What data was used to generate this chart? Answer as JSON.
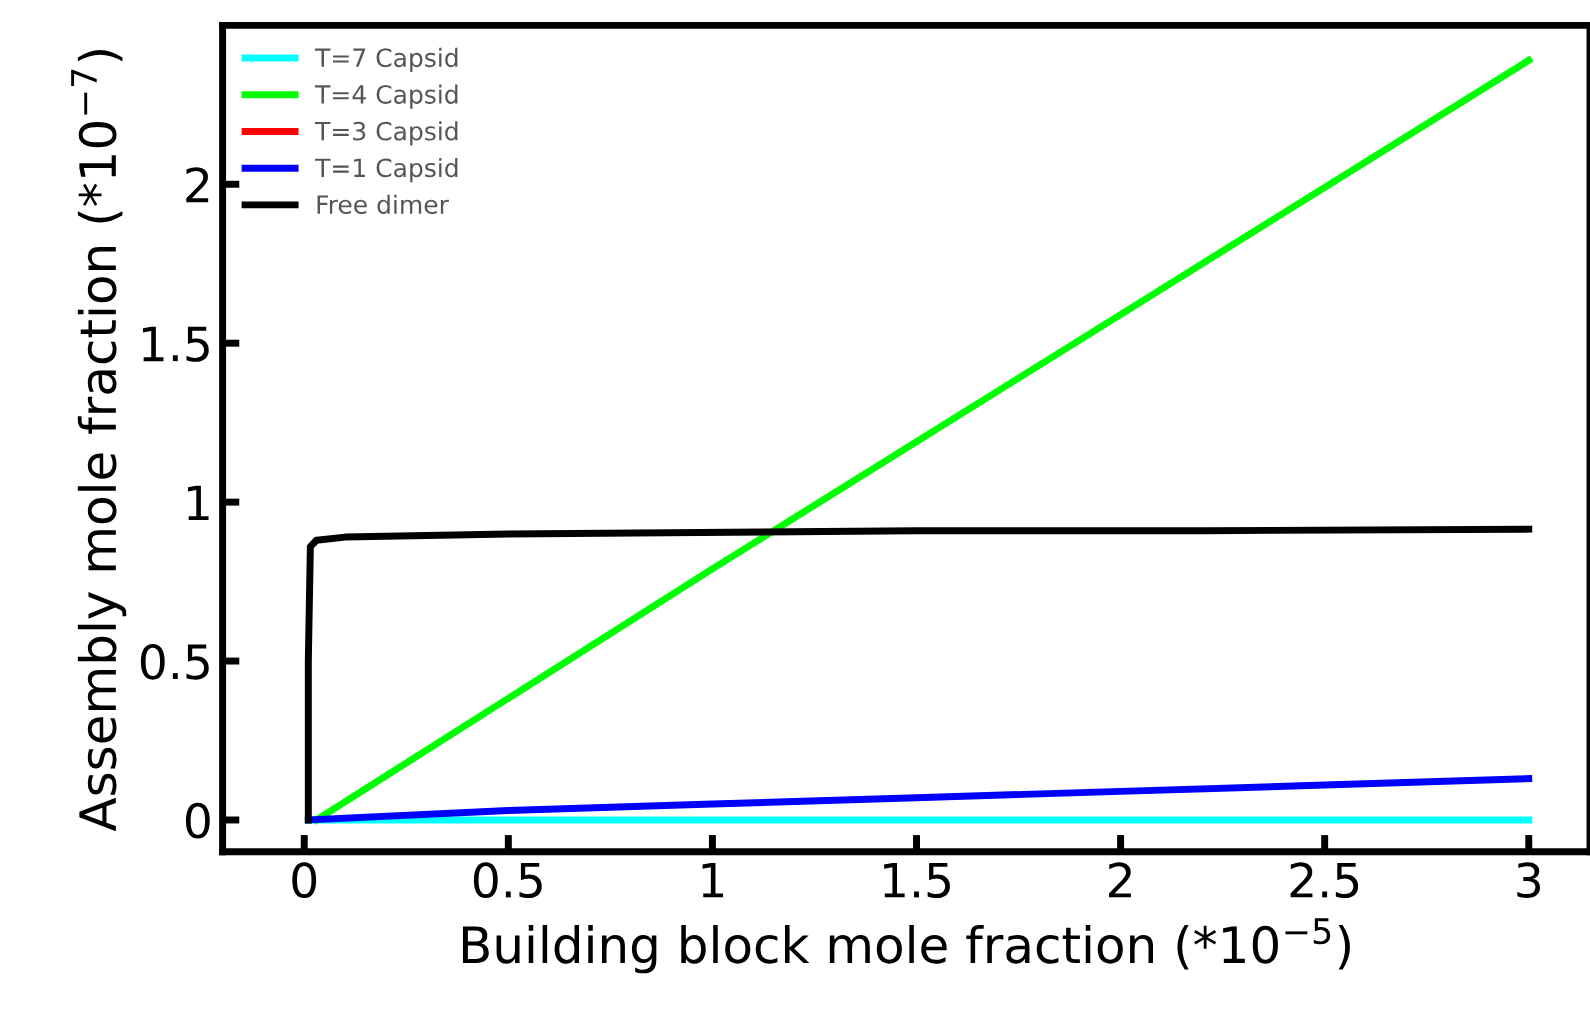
{
  "chart_data": {
    "type": "line",
    "xlabel": "Building block mole fraction (*10$^{−5}$)",
    "ylabel": "Assembly mole fraction (*10$^{−7}$)",
    "xlim": [
      -0.2,
      3.15
    ],
    "ylim": [
      -0.1,
      2.5
    ],
    "xticks": [
      0,
      0.5,
      1,
      1.5,
      2,
      2.5,
      3
    ],
    "yticks": [
      0,
      0.5,
      1,
      1.5,
      2
    ],
    "grid": false,
    "legend": "top left",
    "marker": "none",
    "line_style": "solid",
    "series": [
      {
        "name": "T=7 Capsid",
        "color": "#00ffff",
        "x": [
          0.01,
          3
        ],
        "values": [
          0,
          0
        ]
      },
      {
        "name": "T=4 Capsid",
        "color": "#00ff00",
        "x": [
          0.03,
          1,
          2,
          3
        ],
        "values": [
          0,
          0.79,
          1.59,
          2.39
        ]
      },
      {
        "name": "T=3 Capsid",
        "color": "#ff0000"
      },
      {
        "name": "T=1 Capsid",
        "color": "#0000ff",
        "x": [
          0.01,
          0.5,
          1,
          1.5,
          2,
          2.5,
          3
        ],
        "values": [
          0,
          0.03,
          0.05,
          0.07,
          0.09,
          0.11,
          0.13
        ]
      },
      {
        "name": "Free dimer",
        "color": "#000000",
        "x": [
          0.01,
          0.01,
          0.015,
          0.03,
          0.1,
          0.5,
          1.5,
          2.2,
          3
        ],
        "values": [
          0,
          0.5,
          0.86,
          0.88,
          0.89,
          0.9,
          0.91,
          0.91,
          0.915
        ]
      }
    ]
  }
}
